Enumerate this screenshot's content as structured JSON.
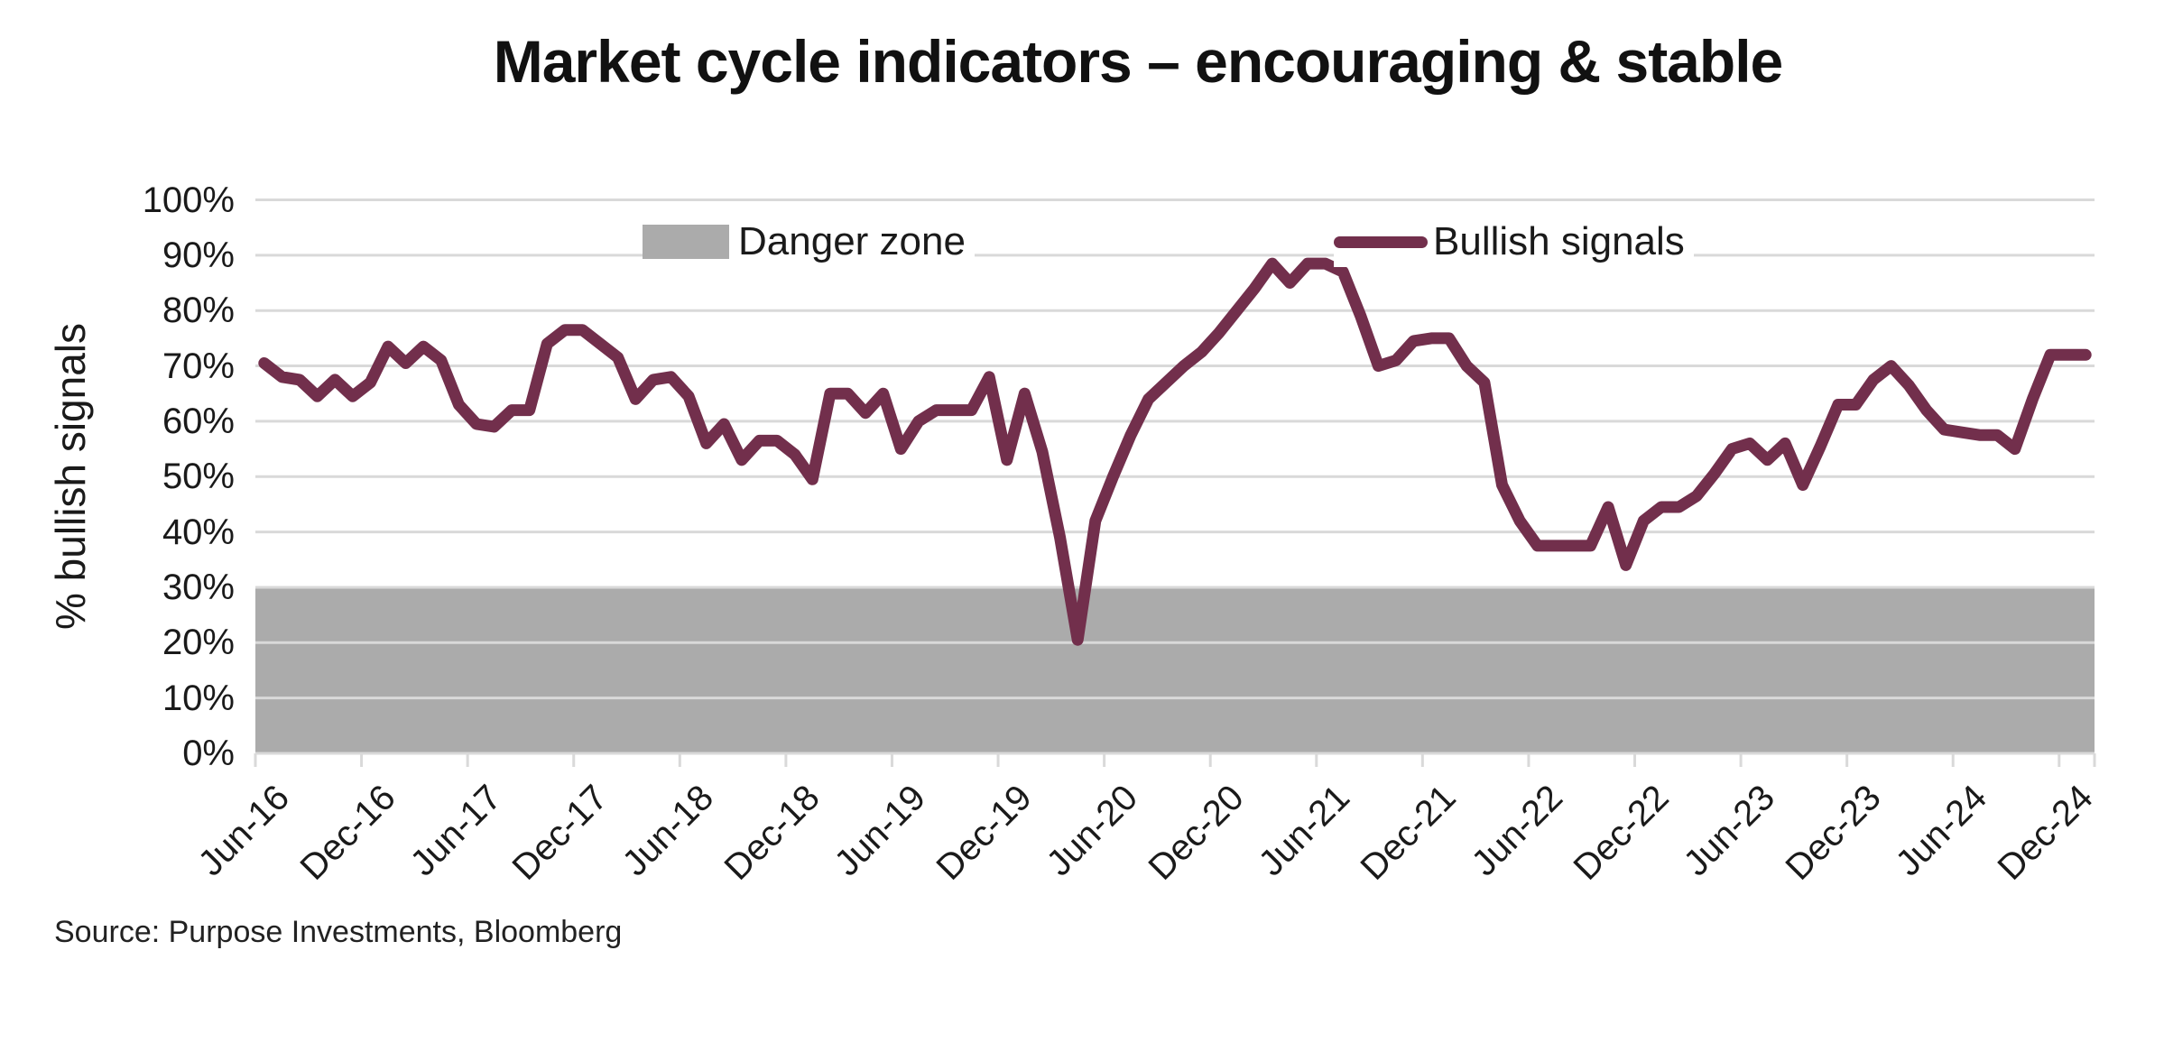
{
  "title": "Market cycle indicators – encouraging & stable",
  "source": "Source: Purpose Investments, Bloomberg",
  "legend": {
    "danger_label": "Danger zone",
    "bullish_label": "Bullish signals"
  },
  "y_axis": {
    "title": "% bullish signals",
    "ticks": [
      "100%",
      "90%",
      "80%",
      "70%",
      "60%",
      "50%",
      "40%",
      "30%",
      "20%",
      "10%",
      "0%"
    ]
  },
  "x_axis": {
    "tick_labels": [
      "Jun-16",
      "Dec-16",
      "Jun-17",
      "Dec-17",
      "Jun-18",
      "Dec-18",
      "Jun-19",
      "Dec-19",
      "Jun-20",
      "Dec-20",
      "Jun-21",
      "Dec-21",
      "Jun-22",
      "Dec-22",
      "Jun-23",
      "Dec-23",
      "Jun-24",
      "Dec-24"
    ]
  },
  "colors": {
    "line": "#722F4C",
    "danger_zone": "#ABABAB",
    "gridline": "#D9D9D9",
    "text": "#1A1A1A"
  },
  "chart_data": {
    "type": "line",
    "title": "Market cycle indicators – encouraging & stable",
    "xlabel": "",
    "ylabel": "% bullish signals",
    "ylim": [
      0,
      100
    ],
    "y_tick_step": 10,
    "grid": "horizontal",
    "legend_position": "top-inside",
    "x_tick_every_months": 6,
    "x": [
      "Jun-16",
      "Jul-16",
      "Aug-16",
      "Sep-16",
      "Oct-16",
      "Nov-16",
      "Dec-16",
      "Jan-17",
      "Feb-17",
      "Mar-17",
      "Apr-17",
      "May-17",
      "Jun-17",
      "Jul-17",
      "Aug-17",
      "Sep-17",
      "Oct-17",
      "Nov-17",
      "Dec-17",
      "Jan-18",
      "Feb-18",
      "Mar-18",
      "Apr-18",
      "May-18",
      "Jun-18",
      "Jul-18",
      "Aug-18",
      "Sep-18",
      "Oct-18",
      "Nov-18",
      "Dec-18",
      "Jan-19",
      "Feb-19",
      "Mar-19",
      "Apr-19",
      "May-19",
      "Jun-19",
      "Jul-19",
      "Aug-19",
      "Sep-19",
      "Oct-19",
      "Nov-19",
      "Dec-19",
      "Jan-20",
      "Feb-20",
      "Mar-20",
      "Apr-20",
      "May-20",
      "Jun-20",
      "Jul-20",
      "Aug-20",
      "Sep-20",
      "Oct-20",
      "Nov-20",
      "Dec-20",
      "Jan-21",
      "Feb-21",
      "Mar-21",
      "Apr-21",
      "May-21",
      "Jun-21",
      "Jul-21",
      "Aug-21",
      "Sep-21",
      "Oct-21",
      "Nov-21",
      "Dec-21",
      "Jan-22",
      "Feb-22",
      "Mar-22",
      "Apr-22",
      "May-22",
      "Jun-22",
      "Jul-22",
      "Aug-22",
      "Sep-22",
      "Oct-22",
      "Nov-22",
      "Dec-22",
      "Jan-23",
      "Feb-23",
      "Mar-23",
      "Apr-23",
      "May-23",
      "Jun-23",
      "Jul-23",
      "Aug-23",
      "Sep-23",
      "Oct-23",
      "Nov-23",
      "Dec-23",
      "Jan-24",
      "Feb-24",
      "Mar-24",
      "Apr-24",
      "May-24",
      "Jun-24",
      "Jul-24",
      "Aug-24",
      "Sep-24",
      "Oct-24",
      "Nov-24",
      "Dec-24",
      "Jan-25"
    ],
    "series": [
      {
        "name": "Bullish signals",
        "color": "#722F4C",
        "values": [
          70.5,
          68,
          67.5,
          64.5,
          67.5,
          64.5,
          67,
          73.5,
          70.5,
          73.5,
          71,
          63,
          59.5,
          59,
          62,
          62,
          74,
          76.5,
          76.5,
          74,
          71.5,
          64,
          67.5,
          68,
          64.5,
          56,
          59.5,
          53,
          56.5,
          56.5,
          54,
          49.5,
          65,
          65,
          61.5,
          65,
          55,
          60,
          62,
          62,
          62,
          68,
          53,
          65,
          54.5,
          39,
          20.5,
          42,
          50,
          57.5,
          64,
          67,
          70,
          72.5,
          76,
          80,
          84,
          88.5,
          85,
          88.5,
          88.5,
          87,
          79,
          70,
          71,
          74.5,
          75,
          75,
          70,
          67,
          48.5,
          42,
          37.5,
          37.5,
          37.5,
          37.5,
          44.5,
          34,
          42,
          44.5,
          44.5,
          46.5,
          50.5,
          55,
          56,
          53,
          56,
          48.5,
          55.5,
          63,
          63,
          67.5,
          70,
          66.5,
          62,
          58.5,
          58,
          57.5,
          57.5,
          55,
          64,
          72,
          72,
          72
        ]
      }
    ],
    "bands": [
      {
        "name": "Danger zone",
        "from": 0,
        "to": 30,
        "color": "#ABABAB"
      }
    ]
  }
}
